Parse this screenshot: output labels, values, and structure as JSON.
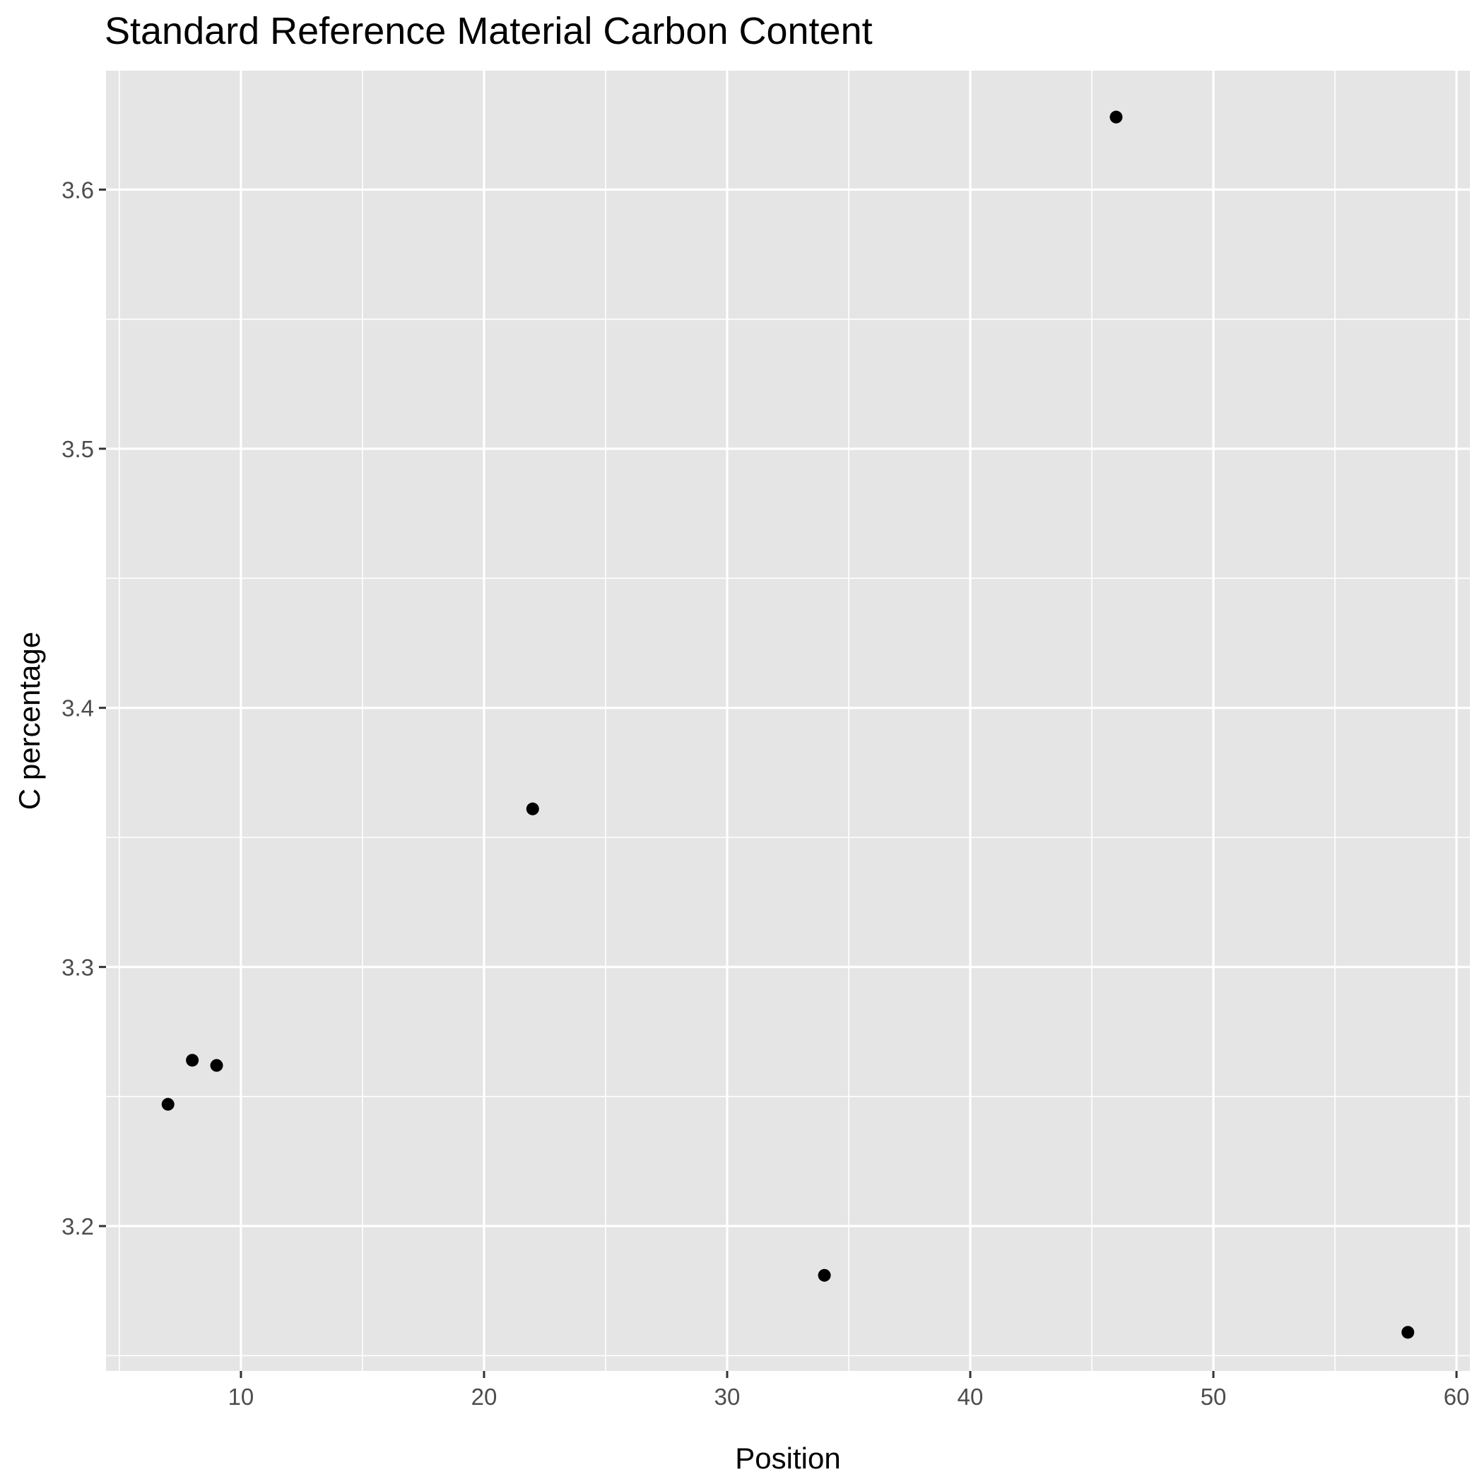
{
  "chart_data": {
    "type": "scatter",
    "title": "Standard Reference Material Carbon Content",
    "xlabel": "Position",
    "ylabel": "C percentage",
    "xlim": [
      4.45,
      60.55
    ],
    "ylim": [
      3.1441,
      3.6459
    ],
    "x_ticks": [
      10,
      20,
      30,
      40,
      50,
      60
    ],
    "x_tick_labels": [
      "10",
      "20",
      "30",
      "40",
      "50",
      "60"
    ],
    "x_minor_ticks": [
      5,
      15,
      25,
      35,
      45,
      55
    ],
    "y_ticks": [
      3.2,
      3.3,
      3.4,
      3.5,
      3.6
    ],
    "y_tick_labels": [
      "3.2",
      "3.3",
      "3.4",
      "3.5",
      "3.6"
    ],
    "y_minor_ticks": [
      3.15,
      3.25,
      3.35,
      3.45,
      3.55
    ],
    "grid": true,
    "panel_color": "#e5e5e5",
    "grid_color": "#ffffff",
    "point_color": "#000000",
    "points": [
      {
        "x": 7,
        "y": 3.247
      },
      {
        "x": 8,
        "y": 3.264
      },
      {
        "x": 9,
        "y": 3.262
      },
      {
        "x": 22,
        "y": 3.361
      },
      {
        "x": 34,
        "y": 3.181
      },
      {
        "x": 46,
        "y": 3.628
      },
      {
        "x": 58,
        "y": 3.159
      }
    ]
  }
}
